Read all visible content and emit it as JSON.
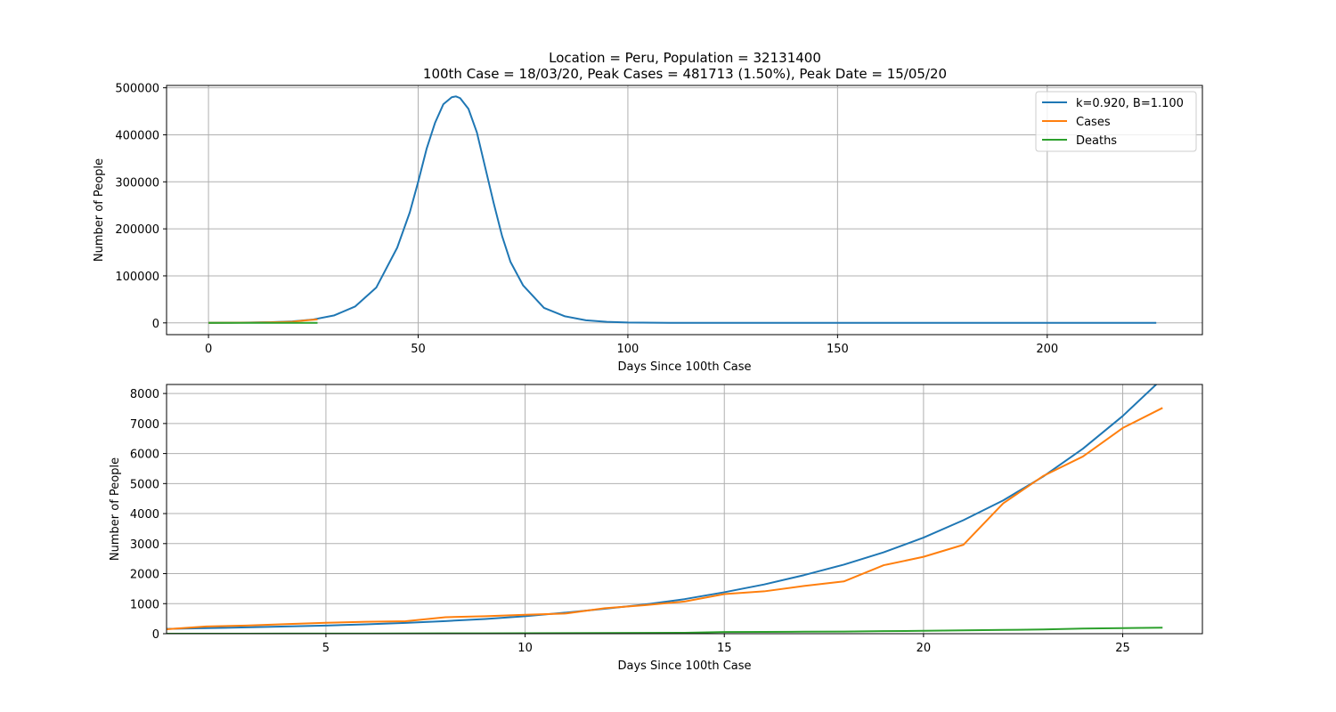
{
  "title": {
    "line1": "Location = Peru, Population = 32131400",
    "line2": "100th Case = 18/03/20, Peak Cases = 481713 (1.50%), Peak Date = 15/05/20"
  },
  "colors": {
    "model": "#1f77b4",
    "cases": "#ff7f0e",
    "deaths": "#2ca02c",
    "grid": "#b0b0b0"
  },
  "chart_data": [
    {
      "type": "line",
      "title": "",
      "xlabel": "Days Since 100th Case",
      "ylabel": "Number of People",
      "xlim": [
        -10,
        237
      ],
      "ylim": [
        -25000,
        505000
      ],
      "xticks": [
        0,
        50,
        100,
        150,
        200
      ],
      "yticks": [
        0,
        100000,
        200000,
        300000,
        400000,
        500000
      ],
      "grid": true,
      "legend_position": "top-right",
      "legend": [
        "k=0.920, B=1.100",
        "Cases",
        "Deaths"
      ],
      "series": [
        {
          "name": "k=0.920, B=1.100",
          "color_key": "model",
          "points": [
            [
              0,
              150
            ],
            [
              5,
              300
            ],
            [
              10,
              700
            ],
            [
              15,
              1400
            ],
            [
              20,
              3200
            ],
            [
              25,
              7300
            ],
            [
              30,
              16000
            ],
            [
              35,
              35000
            ],
            [
              40,
              75000
            ],
            [
              45,
              160000
            ],
            [
              48,
              235000
            ],
            [
              50,
              300000
            ],
            [
              52,
              370000
            ],
            [
              54,
              425000
            ],
            [
              56,
              465000
            ],
            [
              58,
              480000
            ],
            [
              59,
              481713
            ],
            [
              60,
              478000
            ],
            [
              62,
              455000
            ],
            [
              64,
              405000
            ],
            [
              66,
              330000
            ],
            [
              68,
              255000
            ],
            [
              70,
              185000
            ],
            [
              72,
              130000
            ],
            [
              75,
              80000
            ],
            [
              80,
              32000
            ],
            [
              85,
              14000
            ],
            [
              90,
              5500
            ],
            [
              95,
              2200
            ],
            [
              100,
              800
            ],
            [
              110,
              120
            ],
            [
              120,
              20
            ],
            [
              150,
              0
            ],
            [
              226,
              0
            ]
          ]
        },
        {
          "name": "Cases",
          "color_key": "cases",
          "points": [
            [
              0,
              100
            ],
            [
              5,
              370
            ],
            [
              10,
              620
            ],
            [
              15,
              1350
            ],
            [
              20,
              2560
            ],
            [
              22,
              4340
            ],
            [
              24,
              5900
            ],
            [
              26,
              7520
            ]
          ]
        },
        {
          "name": "Deaths",
          "color_key": "deaths",
          "points": [
            [
              0,
              0
            ],
            [
              10,
              10
            ],
            [
              15,
              60
            ],
            [
              20,
              100
            ],
            [
              24,
              180
            ],
            [
              26,
              200
            ]
          ]
        }
      ]
    },
    {
      "type": "line",
      "title": "",
      "xlabel": "Days Since 100th Case",
      "ylabel": "Number of People",
      "xlim": [
        1,
        27
      ],
      "ylim": [
        0,
        8300
      ],
      "xticks": [
        5,
        10,
        15,
        20,
        25
      ],
      "yticks": [
        0,
        1000,
        2000,
        3000,
        4000,
        5000,
        6000,
        7000,
        8000
      ],
      "grid": true,
      "series": [
        {
          "name": "k=0.920, B=1.100",
          "color_key": "model",
          "x": [
            1,
            2,
            3,
            4,
            5,
            6,
            7,
            8,
            9,
            10,
            11,
            12,
            13,
            14,
            15,
            16,
            17,
            18,
            19,
            20,
            21,
            22,
            23,
            24,
            25,
            26
          ],
          "values": [
            160,
            185,
            210,
            240,
            270,
            310,
            360,
            420,
            490,
            580,
            700,
            830,
            970,
            1150,
            1380,
            1640,
            1950,
            2300,
            2710,
            3200,
            3780,
            4440,
            5230,
            6160,
            7250,
            8500
          ]
        },
        {
          "name": "Cases",
          "color_key": "cases",
          "x": [
            1,
            2,
            3,
            4,
            5,
            6,
            7,
            8,
            9,
            10,
            11,
            12,
            13,
            14,
            15,
            16,
            17,
            18,
            19,
            20,
            21,
            22,
            23,
            24,
            25,
            26
          ],
          "values": [
            150,
            240,
            270,
            320,
            365,
            395,
            415,
            550,
            580,
            630,
            670,
            850,
            950,
            1070,
            1320,
            1410,
            1590,
            1740,
            2280,
            2560,
            2960,
            4340,
            5250,
            5900,
            6850,
            7520
          ]
        },
        {
          "name": "Deaths",
          "color_key": "deaths",
          "x": [
            1,
            2,
            3,
            4,
            5,
            6,
            7,
            8,
            9,
            10,
            11,
            12,
            13,
            14,
            15,
            16,
            17,
            18,
            19,
            20,
            21,
            22,
            23,
            24,
            25,
            26
          ],
          "values": [
            0,
            0,
            1,
            2,
            4,
            5,
            7,
            10,
            12,
            16,
            19,
            24,
            27,
            30,
            55,
            60,
            65,
            72,
            85,
            95,
            110,
            125,
            140,
            170,
            185,
            200
          ]
        }
      ]
    }
  ]
}
